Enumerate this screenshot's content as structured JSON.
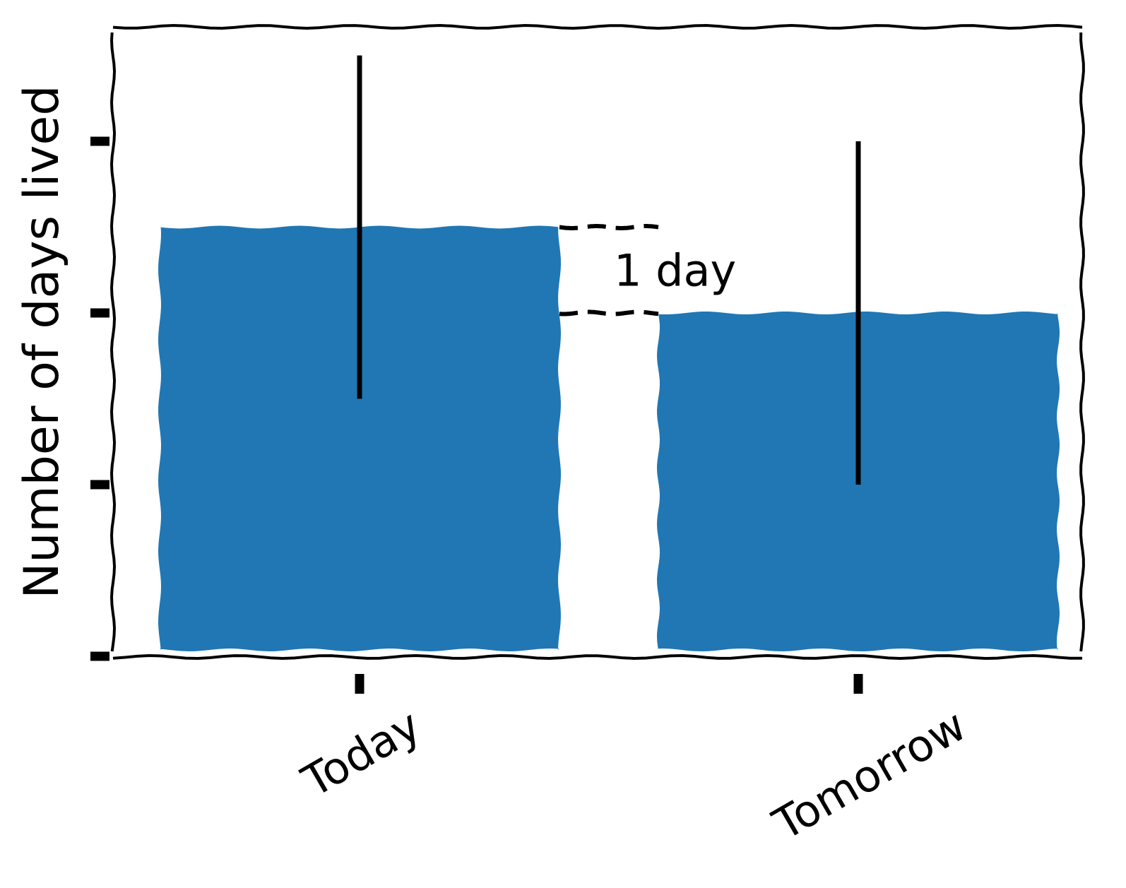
{
  "chart_data": {
    "type": "bar",
    "categories": [
      "Today",
      "Tomorrow"
    ],
    "values": [
      5,
      4
    ],
    "error_bars": [
      {
        "low": 3,
        "high": 7
      },
      {
        "low": 2,
        "high": 6
      }
    ],
    "ylabel": "Number of days lived",
    "ylim": [
      0,
      7.4
    ],
    "ytick_values": [
      0,
      2,
      4,
      6
    ],
    "grid": false,
    "style": "xkcd",
    "bar_color": "#2077b4",
    "annotation": {
      "text": "1 day",
      "from": 4,
      "to": 5
    }
  }
}
